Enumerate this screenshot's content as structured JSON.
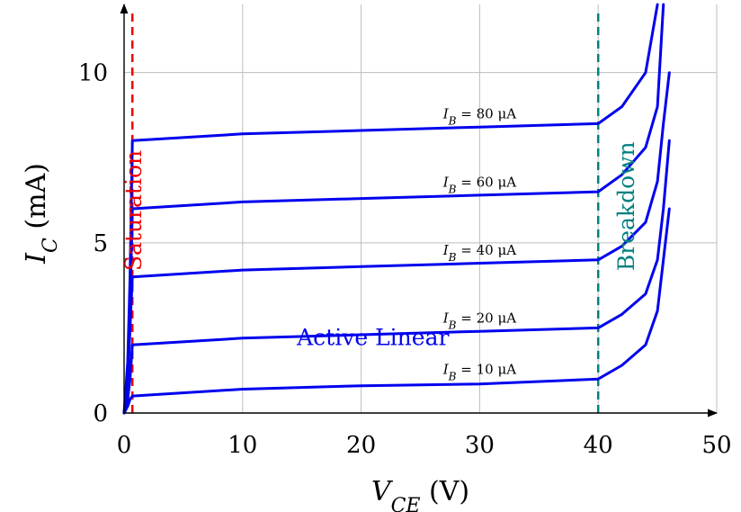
{
  "chart_data": {
    "type": "line",
    "xlabel": "V_CE (V)",
    "ylabel": "I_C (mA)",
    "xlim": [
      0,
      50
    ],
    "ylim": [
      0,
      12
    ],
    "xticks": [
      "0",
      "10",
      "20",
      "30",
      "40",
      "50"
    ],
    "yticks": [
      "0",
      "5",
      "10"
    ],
    "grid": true,
    "curve_color": "#0000ee",
    "series": [
      {
        "name": "I_B = 10 μA",
        "x": [
          0,
          0.3,
          0.5,
          0.7,
          10,
          20,
          30,
          40,
          42,
          44,
          45,
          45.5,
          46
        ],
        "y": [
          0,
          0.2,
          0.4,
          0.5,
          0.7,
          0.8,
          0.85,
          1.0,
          1.4,
          2.0,
          3.0,
          4.5,
          6.0
        ]
      },
      {
        "name": "I_B = 20 μA",
        "x": [
          0,
          0.3,
          0.5,
          0.7,
          10,
          20,
          30,
          40,
          42,
          44,
          45,
          45.5,
          46
        ],
        "y": [
          0,
          0.4,
          1.0,
          2.0,
          2.2,
          2.3,
          2.4,
          2.5,
          2.9,
          3.5,
          4.5,
          6.0,
          8.0
        ]
      },
      {
        "name": "I_B = 40 μA",
        "x": [
          0,
          0.3,
          0.5,
          0.7,
          10,
          20,
          30,
          40,
          42,
          44,
          45,
          45.5,
          46
        ],
        "y": [
          0,
          0.8,
          2.5,
          4.0,
          4.2,
          4.3,
          4.4,
          4.5,
          4.9,
          5.6,
          6.8,
          8.5,
          10.0
        ]
      },
      {
        "name": "I_B = 60 μA",
        "x": [
          0,
          0.3,
          0.5,
          0.7,
          10,
          20,
          30,
          40,
          42,
          44,
          45,
          45.5
        ],
        "y": [
          0,
          1.0,
          3.0,
          6.0,
          6.2,
          6.3,
          6.4,
          6.5,
          7.0,
          7.8,
          9.0,
          12.0
        ]
      },
      {
        "name": "I_B = 80 μA",
        "x": [
          0,
          0.3,
          0.5,
          0.7,
          10,
          20,
          30,
          40,
          42,
          44,
          45
        ],
        "y": [
          0,
          1.5,
          4.0,
          8.0,
          8.2,
          8.3,
          8.4,
          8.5,
          9.0,
          10.0,
          12.0
        ]
      }
    ],
    "curve_labels": [
      {
        "text": "I_B = 80 μA",
        "x": 30,
        "y": 8.65
      },
      {
        "text": "I_B = 60 μA",
        "x": 30,
        "y": 6.65
      },
      {
        "text": "I_B = 40 μA",
        "x": 30,
        "y": 4.65
      },
      {
        "text": "I_B = 20 μA",
        "x": 30,
        "y": 2.65
      },
      {
        "text": "I_B = 10 μA",
        "x": 30,
        "y": 1.15
      }
    ],
    "region_markers": [
      {
        "label": "Saturation",
        "x": 0.7,
        "color": "#ee0000",
        "label_y": 8.2
      },
      {
        "label": "Breakdown",
        "x": 40,
        "color": "#008080",
        "label_y": 8.1
      }
    ],
    "annotations": [
      {
        "text": "Active Linear",
        "x": 21,
        "y": 2.0,
        "color": "#0000ee"
      }
    ]
  }
}
